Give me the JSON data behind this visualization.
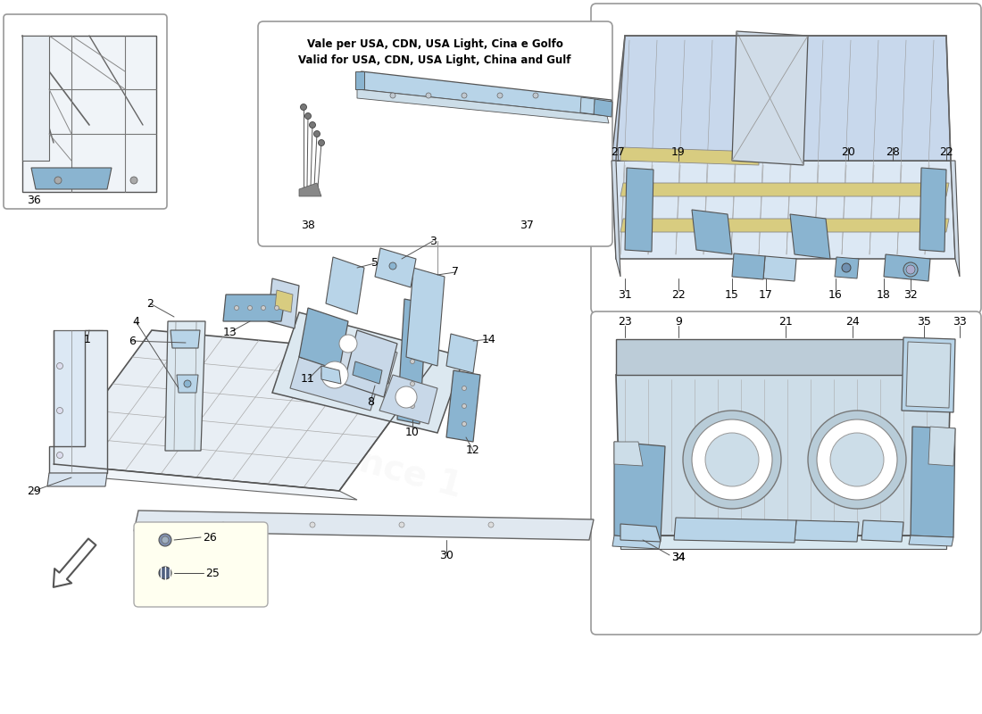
{
  "bg_color": "#ffffff",
  "note_line1": "Vale per USA, CDN, USA Light, Cina e Golfo",
  "note_line2": "Valid for USA, CDN, USA Light, China and Gulf",
  "steel_blue": "#8ab4d0",
  "light_blue": "#b8d4e8",
  "mid_blue": "#7090b0",
  "pale_blue": "#ccdde8",
  "dark_gray": "#555555",
  "line_color": "#444444",
  "label_color": "#000000",
  "border_color": "#999999",
  "structure_color": "#c8d8e8",
  "yellow_color": "#d8cc80",
  "frame_fill": "#dce8f0",
  "inset_bg": "#f8f8f8",
  "white_gray": "#e8ecf0"
}
